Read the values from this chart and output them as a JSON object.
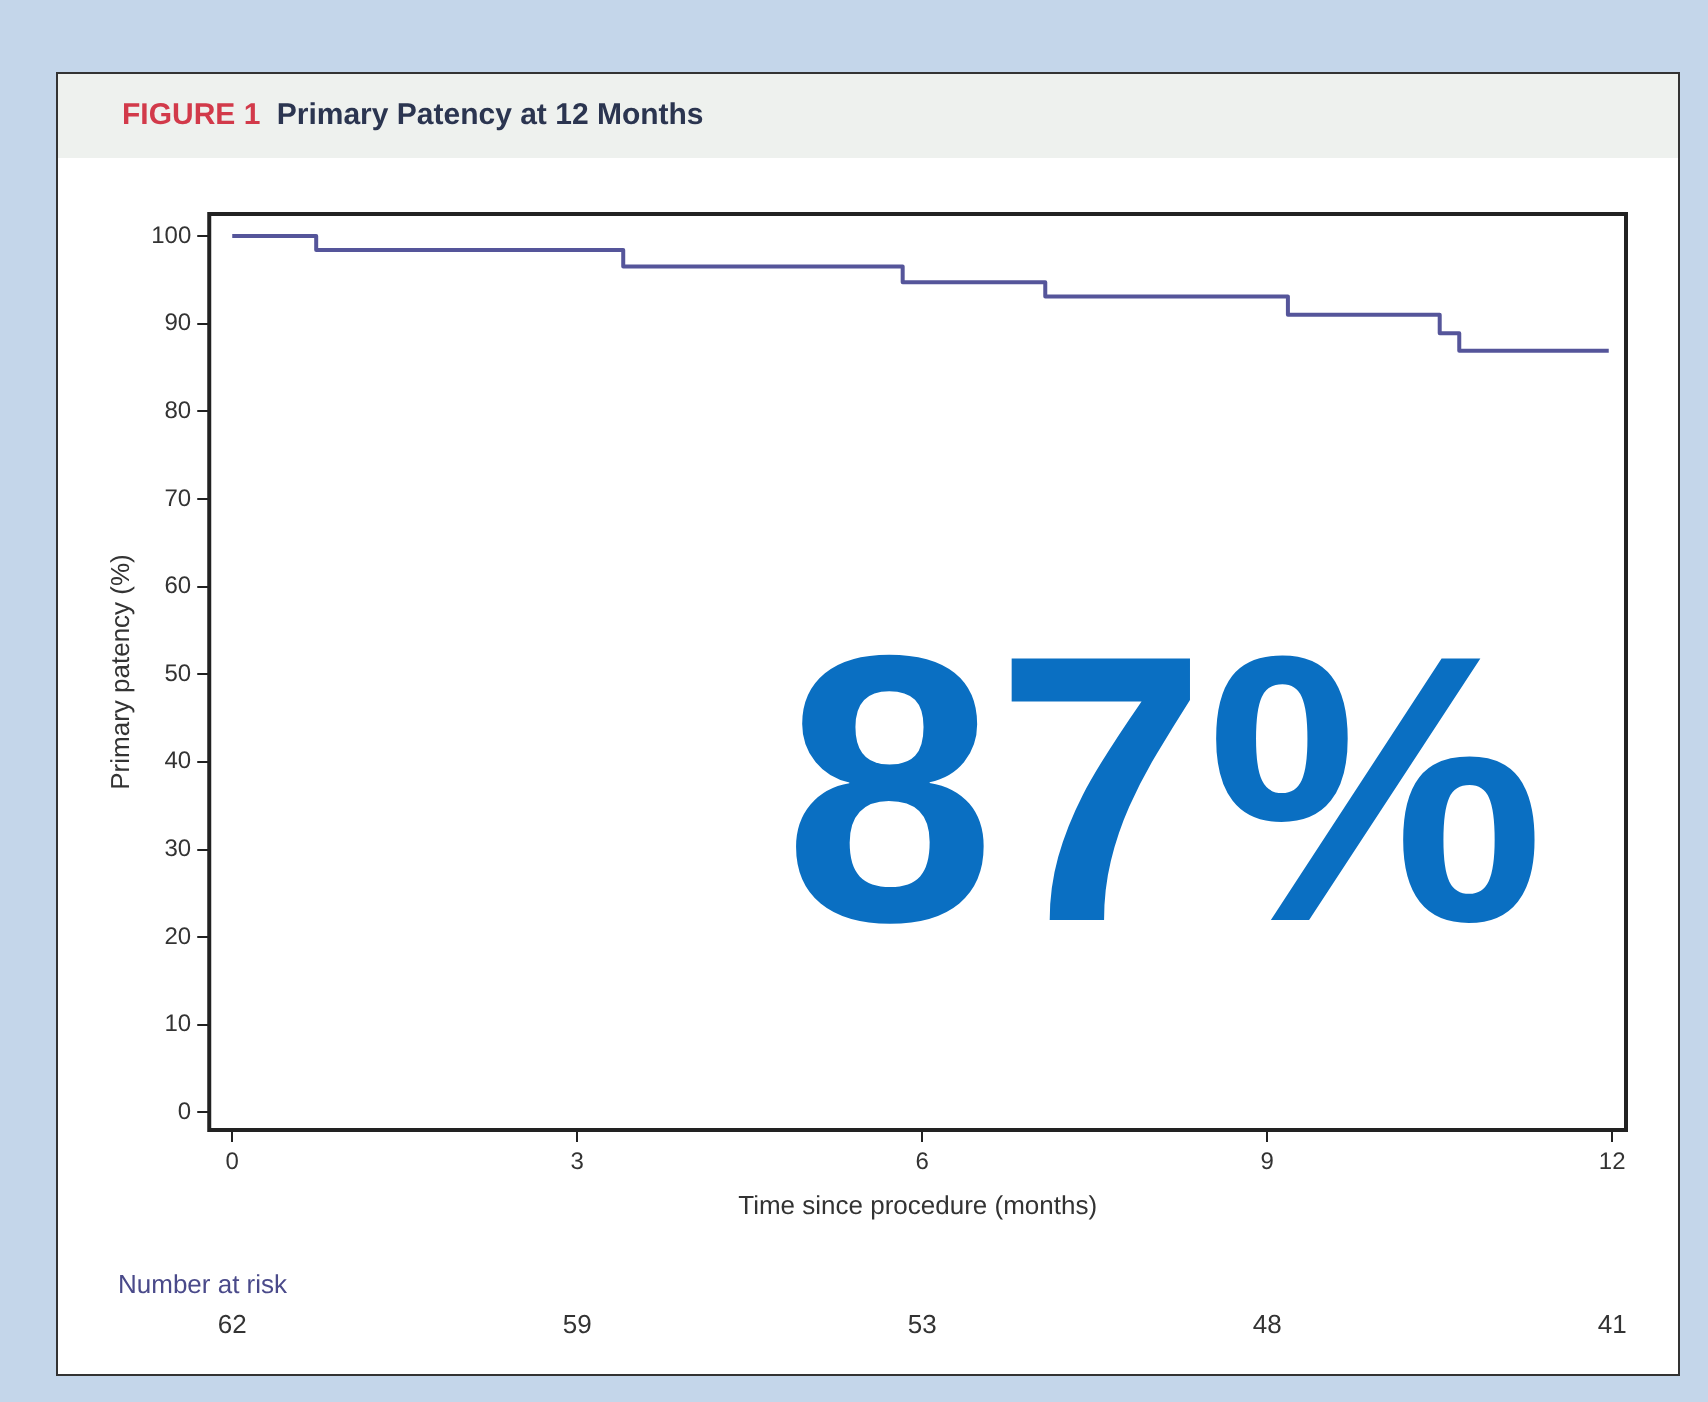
{
  "chart_data": {
    "type": "step",
    "title": "FIGURE 1 Primary Patency at 12 Months",
    "xlabel": "Time since procedure (months)",
    "ylabel": "Primary patency (%)",
    "x": [
      0,
      0.73,
      3.4,
      5.83,
      7.07,
      9.18,
      10.5,
      10.67,
      11.97
    ],
    "series": [
      {
        "color": "#55559a",
        "values": [
          100,
          98.4,
          96.5,
          94.7,
          93.1,
          91.0,
          88.9,
          86.9,
          86.9
        ]
      }
    ],
    "xlim": [
      -0.2,
      12.12
    ],
    "xticks": [
      0,
      3,
      6,
      9,
      12
    ],
    "ylim": [
      -2,
      102.5
    ],
    "yticks": [
      0,
      10,
      20,
      30,
      40,
      50,
      60,
      70,
      80,
      90,
      100
    ],
    "grid": false,
    "legend": false,
    "marker": "none",
    "line_style": "solid",
    "annotations": [
      "87%",
      "Number at risk",
      "62",
      "59",
      "53",
      "48",
      "41"
    ]
  }
}
